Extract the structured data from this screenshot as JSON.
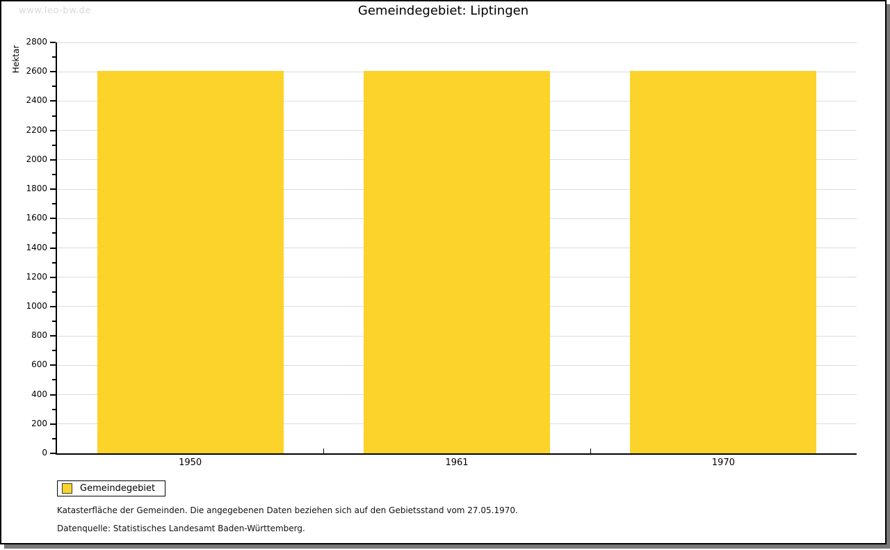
{
  "watermark": "www.leo-bw.de",
  "header": {
    "title": "Gemeindegebiet: Liptingen"
  },
  "chart_data": {
    "type": "bar",
    "title": "Gemeindegebiet: Liptingen",
    "categories": [
      "1950",
      "1961",
      "1970"
    ],
    "series": [
      {
        "name": "Gemeindegebiet",
        "values": [
          2605,
          2605,
          2605
        ]
      }
    ],
    "xlabel": "",
    "ylabel": "Hektar",
    "ylim": [
      0,
      2800
    ],
    "ytick_step": 200,
    "ytick_minor_step": 100,
    "grid": true,
    "legend_position": "bottom-left",
    "bar_color": "#FCD32B",
    "gridline_color": "#dcdcdc"
  },
  "legend": {
    "items": [
      {
        "label": "Gemeindegebiet",
        "color": "#FCD32B"
      }
    ]
  },
  "footnotes": {
    "line1": "Katasterfläche der Gemeinden. Die angegebenen Daten beziehen sich auf den Gebietsstand vom 27.05.1970.",
    "line2": "Datenquelle: Statistisches Landesamt Baden-Württemberg."
  },
  "colors": {
    "bar": "#FCD32B",
    "gridline": "#dcdcdc",
    "watermark": "#d9d9d9",
    "frame_shadow": "#787878"
  }
}
